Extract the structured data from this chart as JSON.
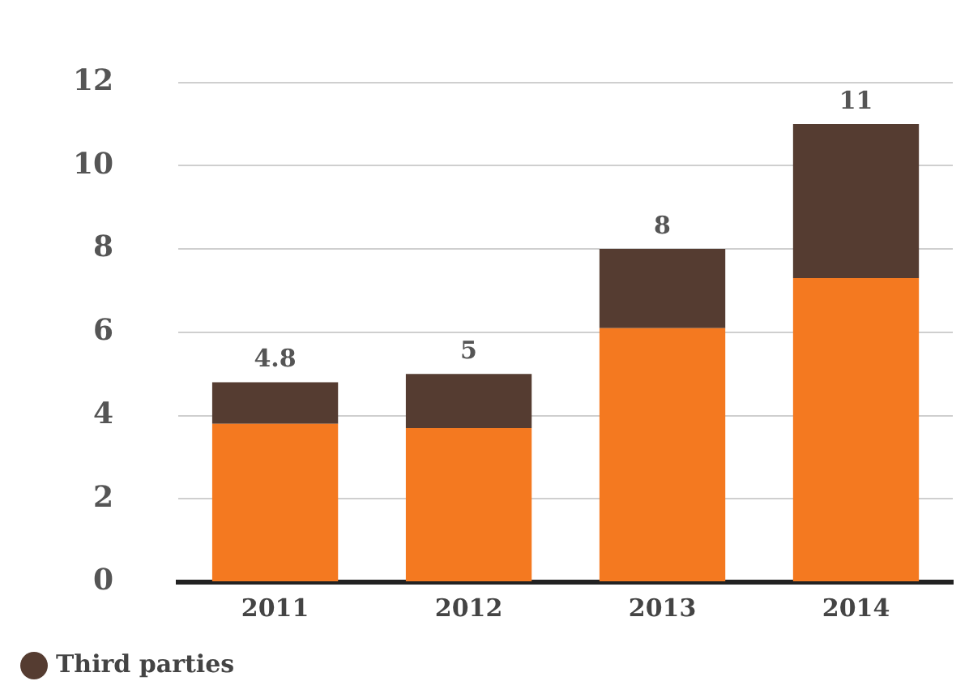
{
  "chart_data": {
    "type": "bar",
    "stacked": true,
    "categories": [
      "2011",
      "2012",
      "2013",
      "2014"
    ],
    "series": [
      {
        "color": "#f47920",
        "values": [
          3.8,
          3.7,
          6.1,
          7.3
        ]
      },
      {
        "name": "Third parties",
        "color": "#553c31",
        "values": [
          1.0,
          1.3,
          1.9,
          3.7
        ]
      }
    ],
    "totals": [
      "4.8",
      "5",
      "8",
      "11"
    ],
    "ylim": [
      0,
      12
    ],
    "yticks": [
      0,
      2,
      4,
      6,
      8,
      10,
      12
    ],
    "grid": "y",
    "legend": "bottom left"
  }
}
